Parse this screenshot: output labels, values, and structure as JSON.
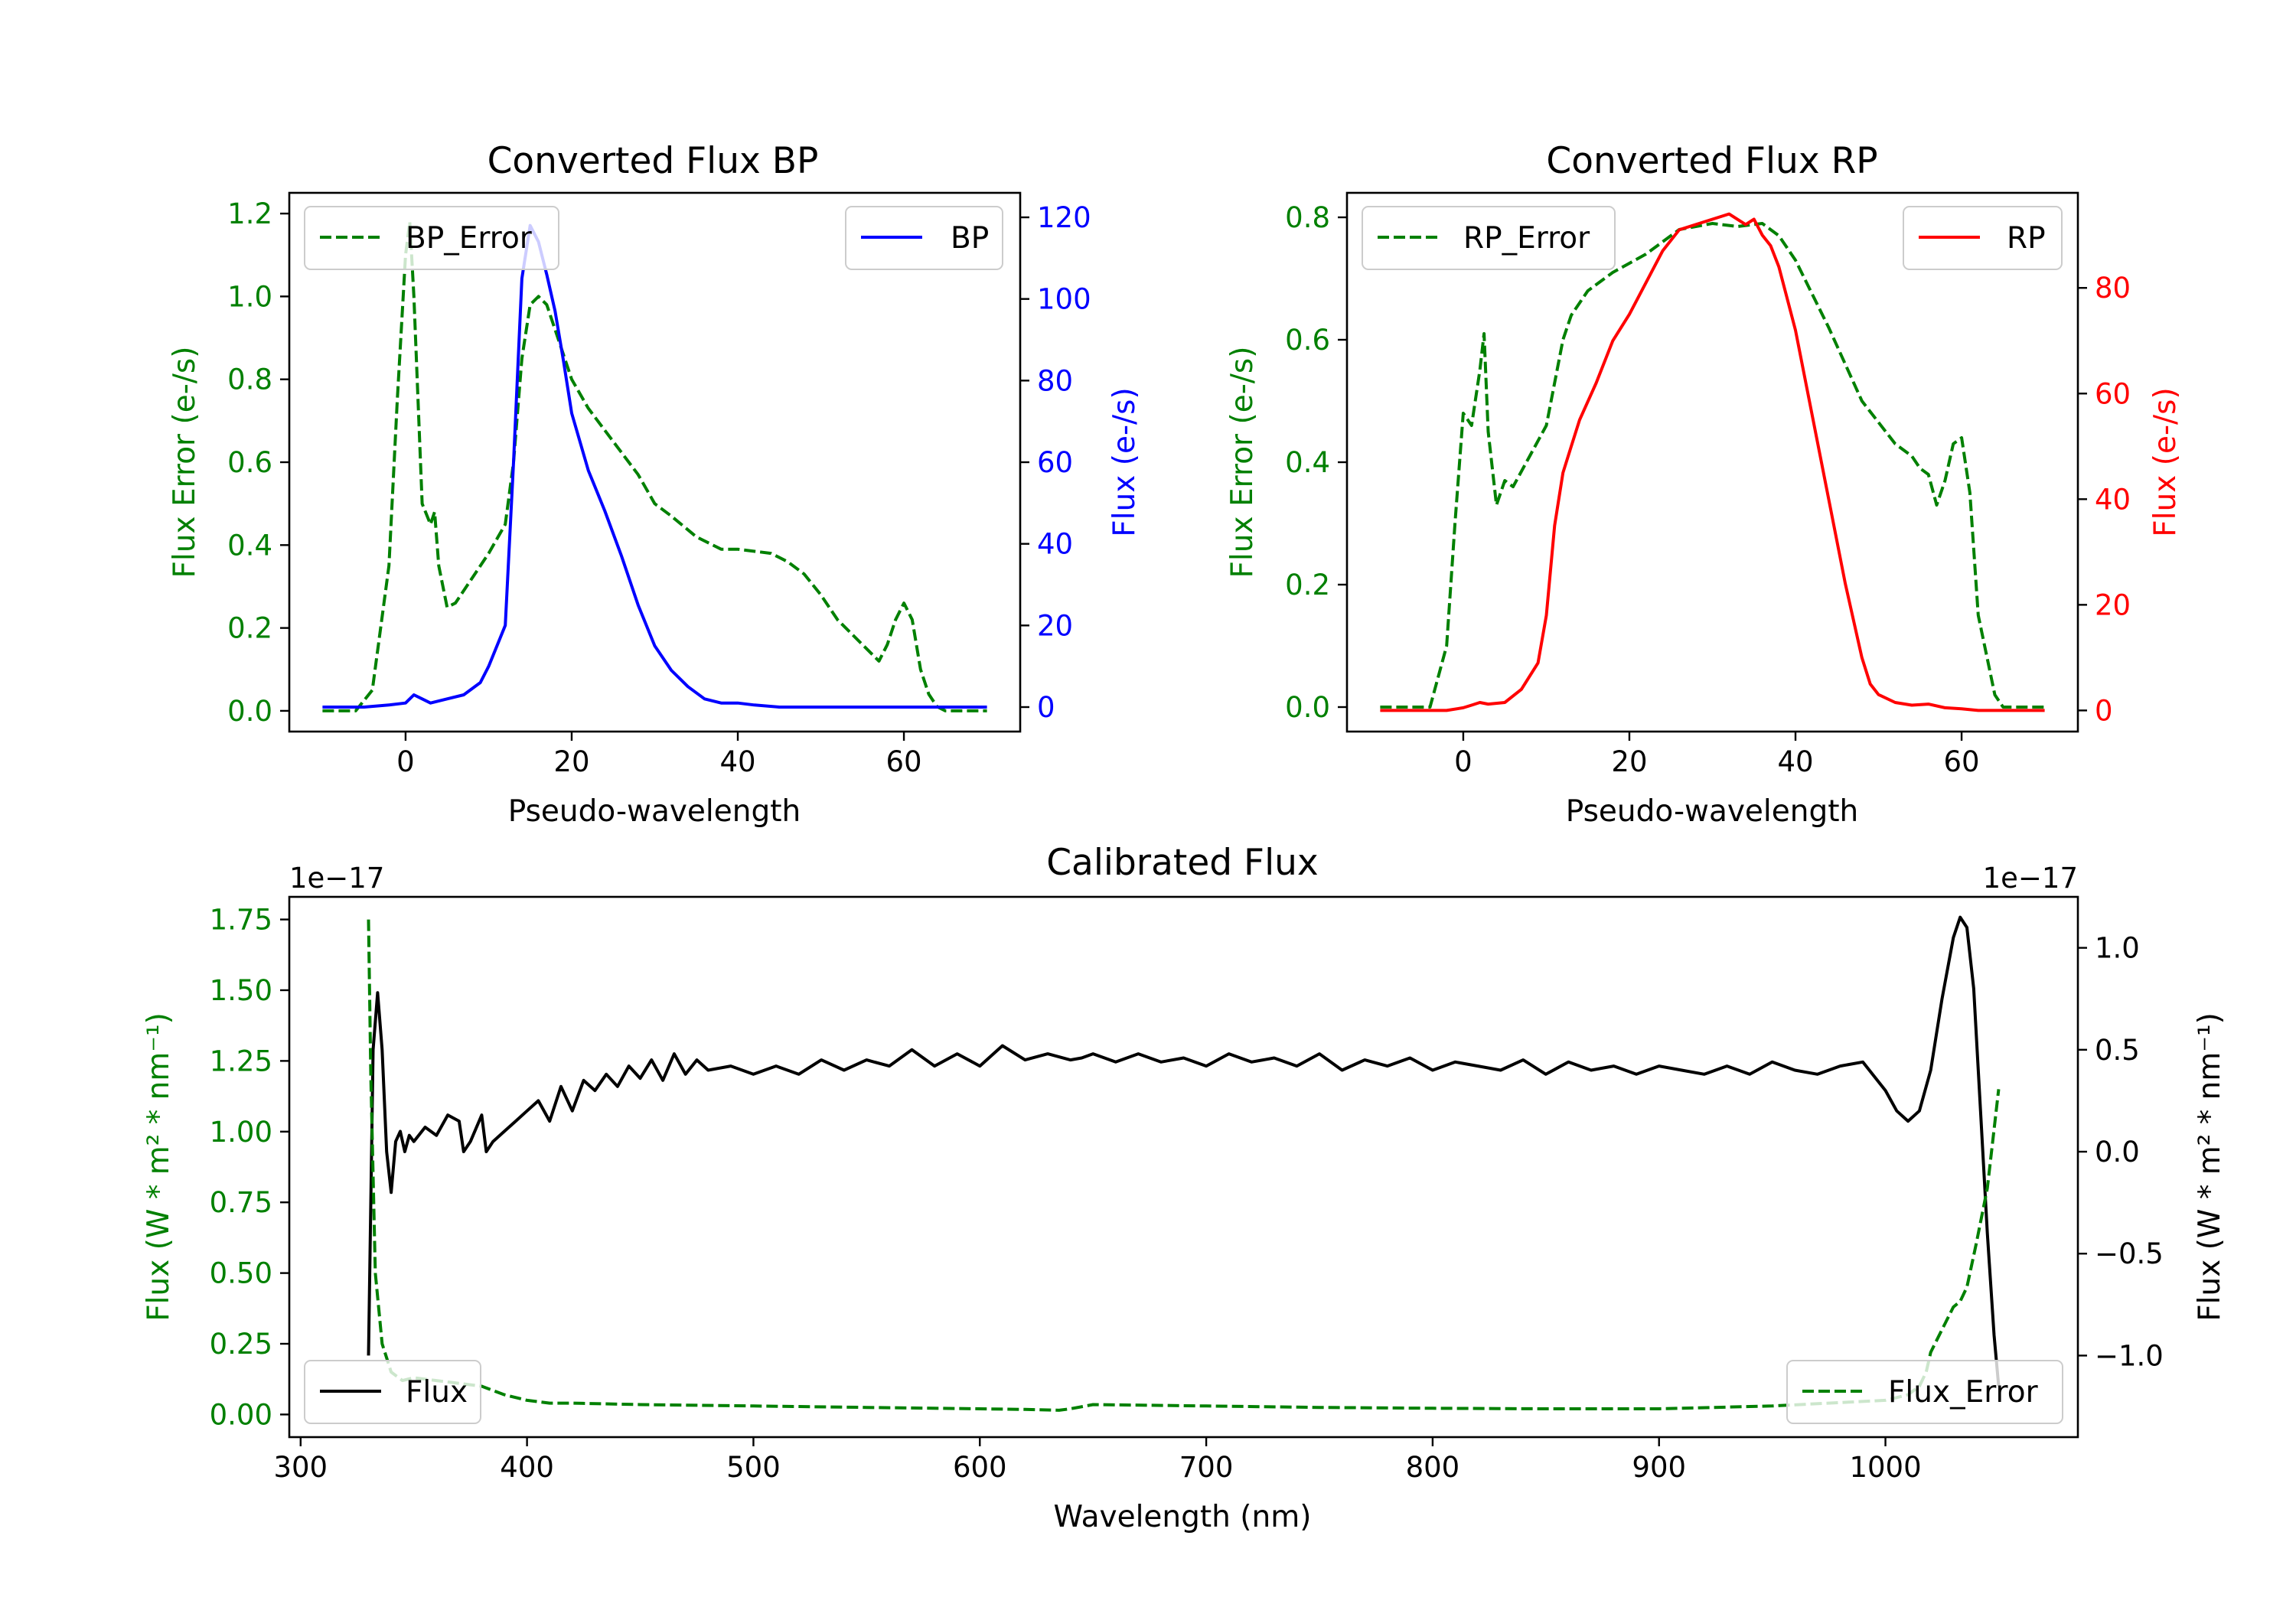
{
  "chart_data": [
    {
      "type": "line",
      "title": "Converted Flux BP",
      "xlabel": "Pseudo-wavelength",
      "xlim": [
        -14,
        74
      ],
      "xticks": [
        0,
        20,
        40,
        60
      ],
      "left_axis": {
        "label": "Flux Error (e-/s)",
        "color": "#008000",
        "ylim": [
          -0.05,
          1.25
        ],
        "ticks": [
          0.0,
          0.2,
          0.4,
          0.6,
          0.8,
          1.0,
          1.2
        ]
      },
      "right_axis": {
        "label": "Flux (e-/s)",
        "color": "#0000ff",
        "ylim": [
          -6,
          126
        ],
        "ticks": [
          0,
          20,
          40,
          60,
          80,
          100,
          120
        ]
      },
      "series": [
        {
          "name": "BP_Error",
          "axis": "left",
          "color": "#008000",
          "dash": true,
          "x": [
            -10,
            -6,
            -4,
            -2,
            -1,
            0,
            0.5,
            1,
            2,
            3,
            3.5,
            4,
            5,
            6,
            8,
            10,
            12,
            13,
            14,
            15,
            16,
            17,
            18,
            20,
            22,
            25,
            28,
            30,
            32,
            35,
            38,
            40,
            44,
            46,
            48,
            50,
            52,
            55,
            57,
            58,
            59,
            60,
            61,
            62,
            63,
            64,
            65,
            70
          ],
          "y": [
            0.0,
            0.0,
            0.05,
            0.35,
            0.75,
            1.1,
            1.18,
            1.0,
            0.5,
            0.45,
            0.48,
            0.35,
            0.25,
            0.26,
            0.32,
            0.38,
            0.45,
            0.6,
            0.85,
            0.98,
            1.0,
            0.98,
            0.92,
            0.8,
            0.73,
            0.65,
            0.57,
            0.5,
            0.47,
            0.42,
            0.39,
            0.39,
            0.38,
            0.36,
            0.33,
            0.28,
            0.22,
            0.16,
            0.12,
            0.16,
            0.22,
            0.26,
            0.22,
            0.1,
            0.04,
            0.01,
            0.0,
            0.0
          ]
        },
        {
          "name": "BP",
          "axis": "right",
          "color": "#0000ff",
          "dash": false,
          "x": [
            -10,
            -5,
            -2,
            0,
            1,
            2,
            3,
            5,
            7,
            9,
            10,
            12,
            13,
            14,
            15,
            16,
            17,
            18,
            19,
            20,
            22,
            24,
            26,
            28,
            30,
            32,
            34,
            36,
            38,
            40,
            42,
            45,
            48,
            50,
            55,
            60,
            65,
            70
          ],
          "y": [
            0,
            0,
            0.5,
            1,
            3,
            2,
            1,
            2,
            3,
            6,
            10,
            20,
            60,
            105,
            118,
            114,
            106,
            97,
            85,
            72,
            58,
            48,
            37,
            25,
            15,
            9,
            5,
            2,
            1,
            1,
            0.5,
            0,
            0,
            0,
            0,
            0,
            0,
            0
          ]
        }
      ],
      "legend": [
        {
          "label": "BP_Error",
          "position": "upper left"
        },
        {
          "label": "BP",
          "position": "upper right"
        }
      ]
    },
    {
      "type": "line",
      "title": "Converted Flux RP",
      "xlabel": "Pseudo-wavelength",
      "xlim": [
        -14,
        74
      ],
      "xticks": [
        0,
        20,
        40,
        60
      ],
      "left_axis": {
        "label": "Flux Error (e-/s)",
        "color": "#008000",
        "ylim": [
          -0.04,
          0.84
        ],
        "ticks": [
          0.0,
          0.2,
          0.4,
          0.6,
          0.8
        ]
      },
      "right_axis": {
        "label": "Flux (e-/s)",
        "color": "#ff0000",
        "ylim": [
          -4,
          98
        ],
        "ticks": [
          0,
          20,
          40,
          60,
          80
        ]
      },
      "series": [
        {
          "name": "RP_Error",
          "axis": "left",
          "color": "#008000",
          "dash": true,
          "x": [
            -10,
            -4,
            -2,
            -1,
            0,
            1,
            2,
            2.5,
            3,
            4,
            5,
            6,
            8,
            10,
            12,
            13,
            15,
            18,
            22,
            26,
            30,
            33,
            36,
            38,
            40,
            44,
            48,
            52,
            54,
            55,
            56,
            57,
            58,
            59,
            60,
            61,
            62,
            64,
            65,
            70
          ],
          "y": [
            0.0,
            0.0,
            0.1,
            0.3,
            0.48,
            0.46,
            0.55,
            0.61,
            0.45,
            0.33,
            0.37,
            0.36,
            0.41,
            0.46,
            0.6,
            0.64,
            0.68,
            0.71,
            0.74,
            0.78,
            0.79,
            0.785,
            0.79,
            0.77,
            0.73,
            0.62,
            0.5,
            0.43,
            0.41,
            0.39,
            0.38,
            0.33,
            0.37,
            0.43,
            0.44,
            0.35,
            0.15,
            0.02,
            0.0,
            0.0
          ]
        },
        {
          "name": "RP",
          "axis": "right",
          "color": "#ff0000",
          "dash": false,
          "x": [
            -10,
            -4,
            -2,
            0,
            1,
            2,
            3,
            5,
            7,
            9,
            10,
            11,
            12,
            13,
            14,
            16,
            18,
            20,
            22,
            24,
            26,
            28,
            30,
            32,
            34,
            35,
            36,
            37,
            38,
            40,
            42,
            44,
            46,
            48,
            49,
            50,
            52,
            54,
            56,
            58,
            60,
            62,
            64,
            70
          ],
          "y": [
            0,
            0,
            0,
            0.5,
            1,
            1.5,
            1.2,
            1.5,
            4,
            9,
            18,
            35,
            45,
            50,
            55,
            62,
            70,
            75,
            81,
            87,
            91,
            92,
            93,
            94,
            92,
            93,
            90,
            88,
            84,
            72,
            56,
            40,
            24,
            10,
            5,
            3,
            1.5,
            1,
            1.2,
            0.5,
            0.3,
            0,
            0,
            0
          ]
        }
      ],
      "legend": [
        {
          "label": "RP_Error",
          "position": "upper left"
        },
        {
          "label": "RP",
          "position": "upper right"
        }
      ]
    },
    {
      "type": "line",
      "title": "Calibrated Flux",
      "xlabel": "Wavelength (nm)",
      "xlim": [
        295,
        1085
      ],
      "xticks": [
        300,
        400,
        500,
        600,
        700,
        800,
        900,
        1000
      ],
      "left_axis": {
        "label": "Flux (W * m² * nm⁻¹)",
        "color": "#008000",
        "ylim": [
          -0.08,
          1.83
        ],
        "ticks": [
          0.0,
          0.25,
          0.5,
          0.75,
          1.0,
          1.25,
          1.5,
          1.75
        ],
        "tick_labels": [
          "0.00",
          "0.25",
          "0.50",
          "0.75",
          "1.00",
          "1.25",
          "1.50",
          "1.75"
        ],
        "offset": "1e−17"
      },
      "right_axis": {
        "label": "Flux (W * m² * nm⁻¹)",
        "color": "#000000",
        "ylim": [
          -1.4,
          1.25
        ],
        "ticks": [
          -1.0,
          -0.5,
          0.0,
          0.5,
          1.0
        ],
        "tick_labels": [
          "−1.0",
          "−0.5",
          "0.0",
          "0.5",
          "1.0"
        ],
        "offset": "1e−17"
      },
      "series": [
        {
          "name": "Flux",
          "axis": "right",
          "color": "#000000",
          "dash": false,
          "x": [
            330,
            332,
            334,
            336,
            338,
            340,
            342,
            344,
            346,
            348,
            350,
            355,
            360,
            365,
            370,
            372,
            375,
            380,
            382,
            385,
            390,
            395,
            400,
            405,
            410,
            415,
            420,
            425,
            430,
            435,
            440,
            445,
            450,
            455,
            460,
            465,
            470,
            475,
            480,
            490,
            500,
            510,
            520,
            530,
            540,
            550,
            560,
            570,
            580,
            590,
            600,
            610,
            620,
            630,
            640,
            645,
            650,
            660,
            670,
            680,
            690,
            700,
            710,
            720,
            730,
            740,
            750,
            760,
            770,
            780,
            790,
            800,
            810,
            820,
            830,
            840,
            850,
            860,
            870,
            880,
            890,
            900,
            910,
            920,
            930,
            940,
            950,
            960,
            970,
            980,
            990,
            1000,
            1005,
            1010,
            1015,
            1020,
            1025,
            1030,
            1033,
            1036,
            1039,
            1042,
            1045,
            1048,
            1050
          ],
          "y": [
            -1.0,
            0.5,
            0.78,
            0.5,
            0.0,
            -0.2,
            0.05,
            0.1,
            0.0,
            0.08,
            0.05,
            0.12,
            0.08,
            0.18,
            0.15,
            0.0,
            0.05,
            0.18,
            0.0,
            0.05,
            0.1,
            0.15,
            0.2,
            0.25,
            0.15,
            0.32,
            0.2,
            0.35,
            0.3,
            0.38,
            0.32,
            0.42,
            0.36,
            0.45,
            0.35,
            0.48,
            0.38,
            0.45,
            0.4,
            0.42,
            0.38,
            0.42,
            0.38,
            0.45,
            0.4,
            0.45,
            0.42,
            0.5,
            0.42,
            0.48,
            0.42,
            0.52,
            0.45,
            0.48,
            0.45,
            0.46,
            0.48,
            0.44,
            0.48,
            0.44,
            0.46,
            0.42,
            0.48,
            0.44,
            0.46,
            0.42,
            0.48,
            0.4,
            0.45,
            0.42,
            0.46,
            0.4,
            0.44,
            0.42,
            0.4,
            0.45,
            0.38,
            0.44,
            0.4,
            0.42,
            0.38,
            0.42,
            0.4,
            0.38,
            0.42,
            0.38,
            0.44,
            0.4,
            0.38,
            0.42,
            0.44,
            0.3,
            0.2,
            0.15,
            0.2,
            0.4,
            0.75,
            1.05,
            1.15,
            1.1,
            0.8,
            0.2,
            -0.4,
            -0.9,
            -1.15
          ]
        },
        {
          "name": "Flux_Error",
          "axis": "left",
          "color": "#008000",
          "dash": true,
          "x": [
            330,
            331,
            333,
            336,
            340,
            345,
            350,
            360,
            370,
            380,
            390,
            400,
            410,
            420,
            450,
            500,
            550,
            600,
            620,
            635,
            640,
            650,
            700,
            750,
            800,
            850,
            900,
            950,
            1000,
            1010,
            1015,
            1018,
            1020,
            1025,
            1030,
            1033,
            1036,
            1040,
            1045,
            1050
          ],
          "y": [
            1.75,
            1.2,
            0.5,
            0.25,
            0.15,
            0.12,
            0.13,
            0.12,
            0.11,
            0.1,
            0.07,
            0.05,
            0.04,
            0.04,
            0.035,
            0.03,
            0.025,
            0.02,
            0.018,
            0.015,
            0.02,
            0.035,
            0.03,
            0.025,
            0.022,
            0.02,
            0.02,
            0.03,
            0.05,
            0.07,
            0.1,
            0.15,
            0.22,
            0.3,
            0.38,
            0.4,
            0.45,
            0.6,
            0.8,
            1.15
          ]
        }
      ],
      "legend": [
        {
          "label": "Flux",
          "position": "lower left"
        },
        {
          "label": "Flux_Error",
          "position": "lower right"
        }
      ]
    }
  ]
}
